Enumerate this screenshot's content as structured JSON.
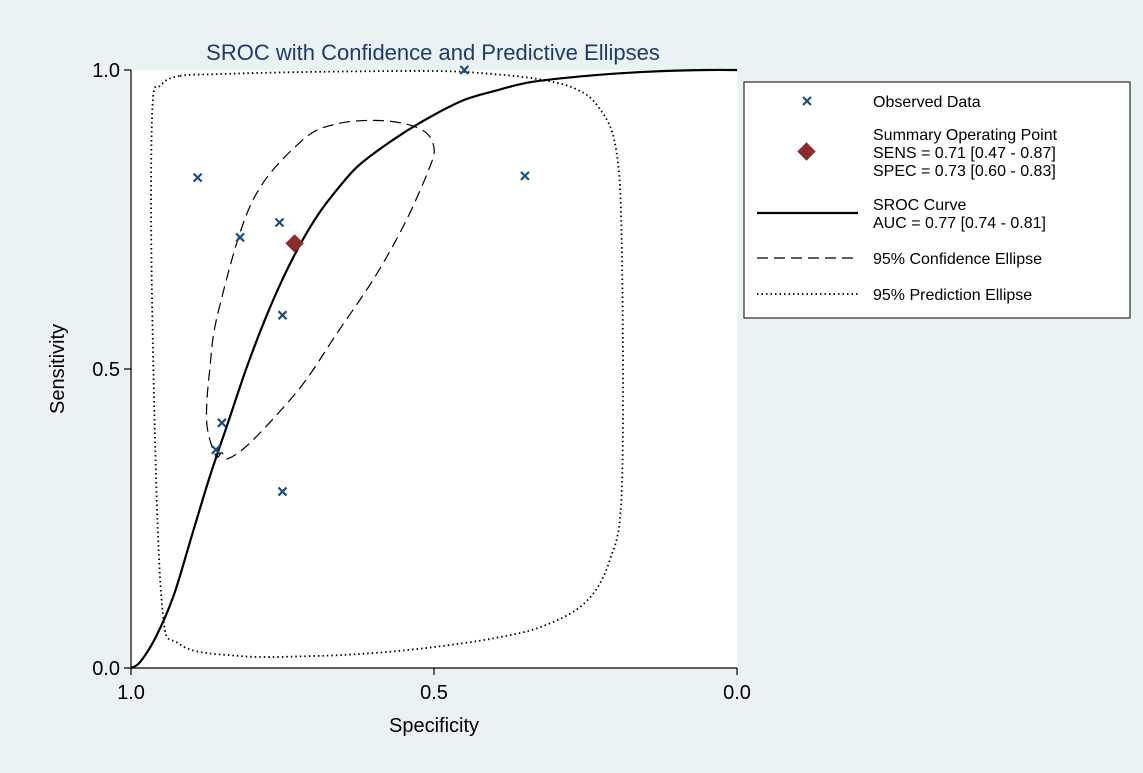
{
  "chart_data": {
    "type": "scatter",
    "title": "SROC with Confidence and Predictive Ellipses",
    "xlabel": "Specificity",
    "ylabel": "Sensitivity",
    "x_reversed": true,
    "xlim": [
      1.0,
      0.0
    ],
    "ylim": [
      0.0,
      1.0
    ],
    "xticks": [
      1.0,
      0.5,
      0.0
    ],
    "yticks": [
      0.0,
      0.5,
      1.0
    ],
    "xtick_labels": [
      "1.0",
      "0.5",
      "0.0"
    ],
    "ytick_labels": [
      "0.0",
      "0.5",
      "1.0"
    ],
    "grid": false,
    "legend_position": "right",
    "observed": {
      "x": [
        0.89,
        0.82,
        0.755,
        0.75,
        0.75,
        0.85,
        0.86,
        0.45,
        0.35
      ],
      "y": [
        0.82,
        0.72,
        0.745,
        0.59,
        0.295,
        0.41,
        0.365,
        1.0,
        0.823
      ],
      "color": "#1f4e79"
    },
    "summary_point": {
      "x": 0.73,
      "y": 0.71,
      "color": "#8b2b2b"
    },
    "sroc_curve": {
      "x": [
        1.0,
        0.985,
        0.96,
        0.93,
        0.9,
        0.87,
        0.84,
        0.81,
        0.78,
        0.75,
        0.72,
        0.69,
        0.66,
        0.63,
        0.6,
        0.55,
        0.5,
        0.45,
        0.4,
        0.35,
        0.3,
        0.25,
        0.2,
        0.15,
        0.1,
        0.05,
        0.0
      ],
      "y": [
        0.0,
        0.01,
        0.05,
        0.12,
        0.22,
        0.32,
        0.41,
        0.5,
        0.58,
        0.65,
        0.71,
        0.76,
        0.8,
        0.835,
        0.86,
        0.895,
        0.925,
        0.95,
        0.965,
        0.978,
        0.985,
        0.99,
        0.994,
        0.997,
        0.999,
        1.0,
        1.0
      ]
    },
    "confidence_ellipse": {
      "x": [
        0.86,
        0.85,
        0.84,
        0.8,
        0.72,
        0.66,
        0.6,
        0.55,
        0.51,
        0.5,
        0.52,
        0.58,
        0.66,
        0.72,
        0.8,
        0.855,
        0.87,
        0.875,
        0.86
      ],
      "y": [
        0.355,
        0.36,
        0.35,
        0.38,
        0.47,
        0.56,
        0.65,
        0.74,
        0.83,
        0.87,
        0.9,
        0.915,
        0.91,
        0.88,
        0.78,
        0.6,
        0.5,
        0.41,
        0.355
      ]
    },
    "prediction_ellipse": {
      "x": [
        0.92,
        0.95,
        0.965,
        0.965,
        0.95,
        0.92,
        0.82,
        0.7,
        0.6,
        0.5,
        0.4,
        0.32,
        0.25,
        0.21,
        0.19,
        0.19,
        0.2,
        0.23,
        0.27,
        0.33,
        0.4,
        0.48,
        0.6,
        0.75,
        0.86,
        0.92
      ],
      "y": [
        0.99,
        0.975,
        0.93,
        0.6,
        0.12,
        0.04,
        0.02,
        0.02,
        0.025,
        0.035,
        0.05,
        0.07,
        0.11,
        0.18,
        0.3,
        0.7,
        0.87,
        0.94,
        0.97,
        0.985,
        0.993,
        0.998,
        0.998,
        0.996,
        0.993,
        0.99
      ]
    },
    "legend": {
      "observed": "Observed Data",
      "summary_lines": [
        "Summary Operating Point",
        "SENS = 0.71 [0.47 - 0.87]",
        "SPEC = 0.73 [0.60 - 0.83]"
      ],
      "sroc_lines": [
        "SROC Curve",
        "AUC = 0.77 [0.74 - 0.81]"
      ],
      "confidence": "95% Confidence Ellipse",
      "prediction": "95% Prediction Ellipse"
    }
  }
}
